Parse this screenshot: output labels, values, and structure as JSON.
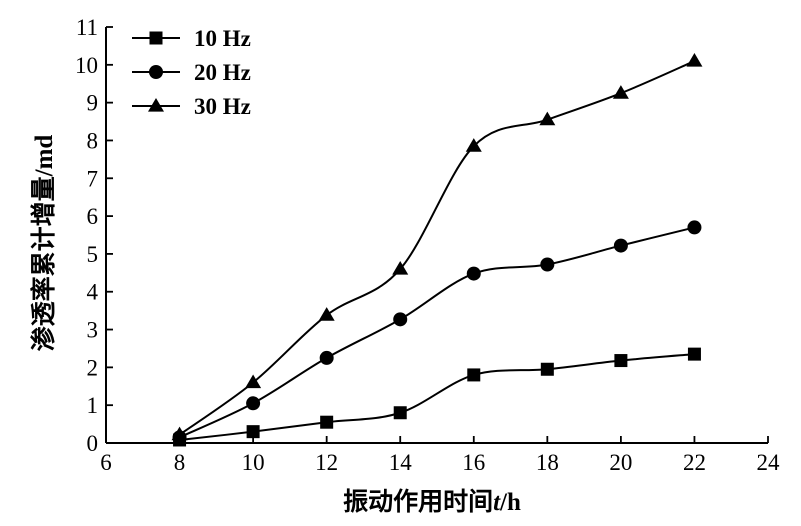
{
  "chart_data": {
    "type": "line",
    "xlabel_main": "振动作用时间",
    "xlabel_var": "t",
    "xlabel_unit": "/h",
    "ylabel": "渗透率累计增量/md",
    "xlim": [
      6,
      24
    ],
    "ylim": [
      0,
      11
    ],
    "xticks": [
      6,
      8,
      10,
      12,
      14,
      16,
      18,
      20,
      22,
      24
    ],
    "yticks": [
      0,
      1,
      2,
      3,
      4,
      5,
      6,
      7,
      8,
      9,
      10,
      11
    ],
    "x": [
      8,
      10,
      12,
      14,
      16,
      18,
      20,
      22
    ],
    "legend_position": "top-left",
    "grid": false,
    "series": [
      {
        "name": "10 Hz",
        "marker": "square",
        "values": [
          0.08,
          0.3,
          0.55,
          0.8,
          1.8,
          1.95,
          2.18,
          2.35
        ]
      },
      {
        "name": "20 Hz",
        "marker": "circle",
        "values": [
          0.15,
          1.05,
          2.25,
          3.27,
          4.48,
          4.72,
          5.22,
          5.7
        ]
      },
      {
        "name": "30 Hz",
        "marker": "triangle",
        "values": [
          0.22,
          1.6,
          3.38,
          4.6,
          7.85,
          8.55,
          9.25,
          10.1
        ]
      }
    ]
  }
}
